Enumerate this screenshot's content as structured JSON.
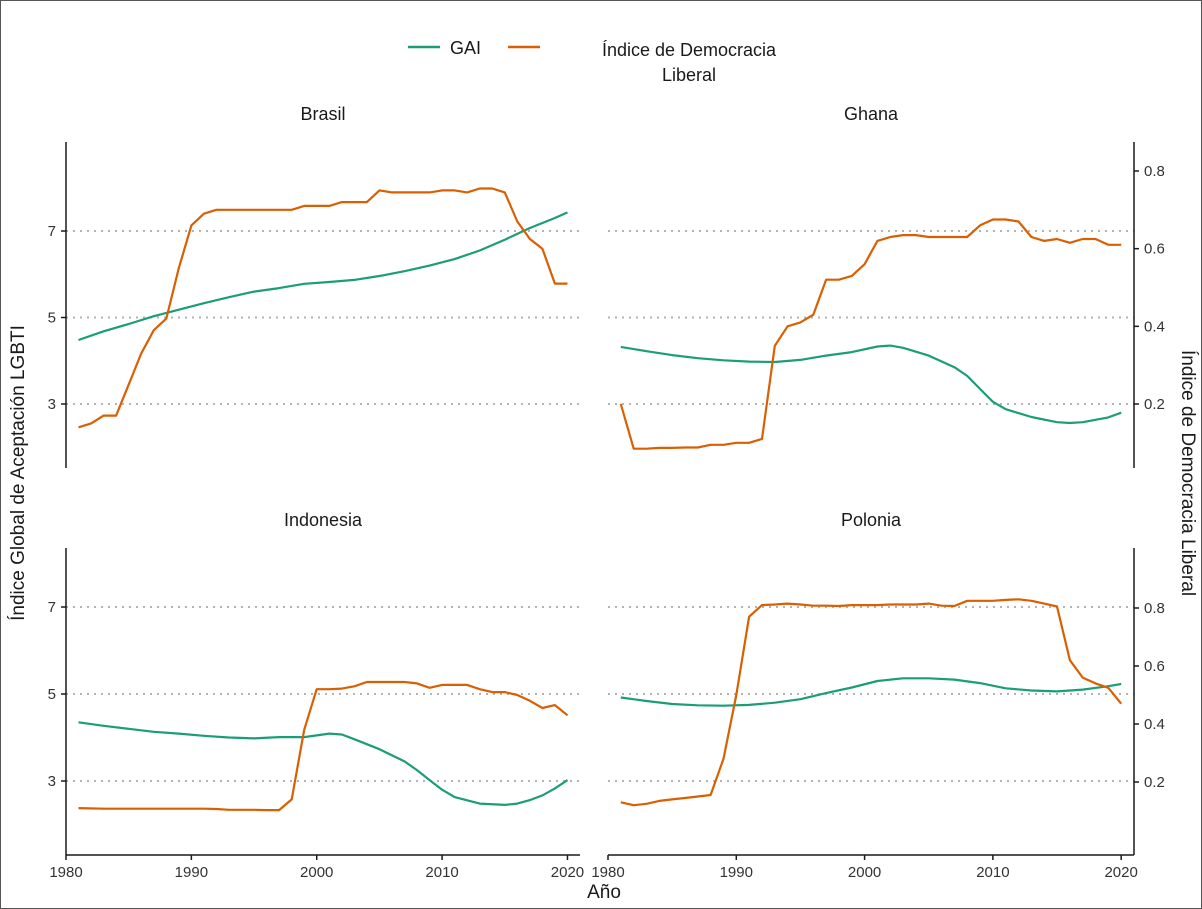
{
  "chart_data": {
    "type": "line",
    "legend": {
      "position": "top",
      "entries": [
        {
          "label": "GAI",
          "color": "#1b9e77"
        },
        {
          "label_lines": [
            "Índice de Democracia",
            "Liberal"
          ],
          "color": "#d95f02"
        }
      ]
    },
    "xlabel": "Año",
    "ylabel_left": "Índice Global de Aceptación LGBTI",
    "ylabel_right": "Índice de Democracia Liberal",
    "x_range": [
      1980,
      2021
    ],
    "x_ticks": [
      "1980",
      "1990",
      "2000",
      "2010",
      "2020"
    ],
    "y_left_ticks": [
      "3",
      "5",
      "7"
    ],
    "y_right_ticks": [
      "0.2",
      "0.4",
      "0.6",
      "0.8"
    ],
    "gridlines": "dotted horizontal at 3, 5, 7",
    "panels": [
      {
        "title": "Brasil",
        "gai": [
          [
            1981,
            4.48
          ],
          [
            1983,
            4.68
          ],
          [
            1985,
            4.85
          ],
          [
            1987,
            5.03
          ],
          [
            1989,
            5.18
          ],
          [
            1991,
            5.33
          ],
          [
            1993,
            5.47
          ],
          [
            1995,
            5.6
          ],
          [
            1997,
            5.68
          ],
          [
            1999,
            5.78
          ],
          [
            2001,
            5.82
          ],
          [
            2003,
            5.87
          ],
          [
            2005,
            5.96
          ],
          [
            2007,
            6.07
          ],
          [
            2009,
            6.2
          ],
          [
            2011,
            6.35
          ],
          [
            2013,
            6.55
          ],
          [
            2015,
            6.8
          ],
          [
            2017,
            7.07
          ],
          [
            2019,
            7.3
          ],
          [
            2020,
            7.43
          ]
        ],
        "ldi": [
          [
            1981,
            0.14
          ],
          [
            1982,
            0.15
          ],
          [
            1983,
            0.17
          ],
          [
            1984,
            0.17
          ],
          [
            1985,
            0.25
          ],
          [
            1986,
            0.33
          ],
          [
            1987,
            0.39
          ],
          [
            1988,
            0.42
          ],
          [
            1989,
            0.55
          ],
          [
            1990,
            0.66
          ],
          [
            1991,
            0.69
          ],
          [
            1992,
            0.7
          ],
          [
            1993,
            0.7
          ],
          [
            1994,
            0.7
          ],
          [
            1995,
            0.7
          ],
          [
            1996,
            0.7
          ],
          [
            1997,
            0.7
          ],
          [
            1998,
            0.7
          ],
          [
            1999,
            0.71
          ],
          [
            2000,
            0.71
          ],
          [
            2001,
            0.71
          ],
          [
            2002,
            0.72
          ],
          [
            2003,
            0.72
          ],
          [
            2004,
            0.72
          ],
          [
            2005,
            0.75
          ],
          [
            2006,
            0.745
          ],
          [
            2007,
            0.745
          ],
          [
            2008,
            0.745
          ],
          [
            2009,
            0.745
          ],
          [
            2010,
            0.75
          ],
          [
            2011,
            0.75
          ],
          [
            2012,
            0.745
          ],
          [
            2013,
            0.755
          ],
          [
            2014,
            0.755
          ],
          [
            2015,
            0.745
          ],
          [
            2016,
            0.67
          ],
          [
            2017,
            0.625
          ],
          [
            2018,
            0.6
          ],
          [
            2019,
            0.51
          ],
          [
            2020,
            0.51
          ]
        ]
      },
      {
        "title": "Ghana",
        "gai": [
          [
            1981,
            4.32
          ],
          [
            1983,
            4.22
          ],
          [
            1985,
            4.13
          ],
          [
            1987,
            4.06
          ],
          [
            1989,
            4.01
          ],
          [
            1991,
            3.98
          ],
          [
            1993,
            3.97
          ],
          [
            1995,
            4.02
          ],
          [
            1997,
            4.12
          ],
          [
            1999,
            4.2
          ],
          [
            2001,
            4.33
          ],
          [
            2002,
            4.35
          ],
          [
            2003,
            4.3
          ],
          [
            2005,
            4.12
          ],
          [
            2007,
            3.85
          ],
          [
            2008,
            3.65
          ],
          [
            2009,
            3.35
          ],
          [
            2010,
            3.05
          ],
          [
            2011,
            2.88
          ],
          [
            2013,
            2.7
          ],
          [
            2015,
            2.58
          ],
          [
            2016,
            2.56
          ],
          [
            2017,
            2.58
          ],
          [
            2019,
            2.69
          ],
          [
            2020,
            2.8
          ]
        ],
        "ldi": [
          [
            1981,
            0.2
          ],
          [
            1982,
            0.085
          ],
          [
            1983,
            0.085
          ],
          [
            1984,
            0.087
          ],
          [
            1985,
            0.087
          ],
          [
            1986,
            0.088
          ],
          [
            1987,
            0.088
          ],
          [
            1988,
            0.095
          ],
          [
            1989,
            0.095
          ],
          [
            1990,
            0.1
          ],
          [
            1991,
            0.1
          ],
          [
            1992,
            0.11
          ],
          [
            1993,
            0.35
          ],
          [
            1994,
            0.4
          ],
          [
            1995,
            0.41
          ],
          [
            1996,
            0.43
          ],
          [
            1997,
            0.52
          ],
          [
            1998,
            0.52
          ],
          [
            1999,
            0.53
          ],
          [
            2000,
            0.56
          ],
          [
            2001,
            0.62
          ],
          [
            2002,
            0.63
          ],
          [
            2003,
            0.635
          ],
          [
            2004,
            0.635
          ],
          [
            2005,
            0.63
          ],
          [
            2006,
            0.63
          ],
          [
            2007,
            0.63
          ],
          [
            2008,
            0.63
          ],
          [
            2009,
            0.66
          ],
          [
            2010,
            0.675
          ],
          [
            2011,
            0.675
          ],
          [
            2012,
            0.67
          ],
          [
            2013,
            0.63
          ],
          [
            2014,
            0.62
          ],
          [
            2015,
            0.625
          ],
          [
            2016,
            0.615
          ],
          [
            2017,
            0.625
          ],
          [
            2018,
            0.625
          ],
          [
            2019,
            0.61
          ],
          [
            2020,
            0.61
          ]
        ]
      },
      {
        "title": "Indonesia",
        "gai": [
          [
            1981,
            4.35
          ],
          [
            1983,
            4.27
          ],
          [
            1985,
            4.2
          ],
          [
            1987,
            4.13
          ],
          [
            1989,
            4.09
          ],
          [
            1991,
            4.04
          ],
          [
            1993,
            4.0
          ],
          [
            1995,
            3.98
          ],
          [
            1997,
            4.01
          ],
          [
            1999,
            4.01
          ],
          [
            2001,
            4.09
          ],
          [
            2002,
            4.07
          ],
          [
            2003,
            3.96
          ],
          [
            2005,
            3.73
          ],
          [
            2007,
            3.45
          ],
          [
            2008,
            3.25
          ],
          [
            2009,
            3.02
          ],
          [
            2010,
            2.8
          ],
          [
            2011,
            2.63
          ],
          [
            2013,
            2.48
          ],
          [
            2015,
            2.45
          ],
          [
            2016,
            2.48
          ],
          [
            2017,
            2.56
          ],
          [
            2018,
            2.67
          ],
          [
            2019,
            2.83
          ],
          [
            2020,
            3.02
          ]
        ],
        "ldi": [
          [
            1981,
            0.11
          ],
          [
            1983,
            0.108
          ],
          [
            1985,
            0.108
          ],
          [
            1987,
            0.108
          ],
          [
            1989,
            0.108
          ],
          [
            1991,
            0.108
          ],
          [
            1992,
            0.107
          ],
          [
            1993,
            0.104
          ],
          [
            1994,
            0.104
          ],
          [
            1995,
            0.104
          ],
          [
            1996,
            0.103
          ],
          [
            1997,
            0.103
          ],
          [
            1998,
            0.14
          ],
          [
            1999,
            0.38
          ],
          [
            2000,
            0.52
          ],
          [
            2001,
            0.52
          ],
          [
            2002,
            0.522
          ],
          [
            2003,
            0.53
          ],
          [
            2004,
            0.545
          ],
          [
            2005,
            0.545
          ],
          [
            2006,
            0.545
          ],
          [
            2007,
            0.545
          ],
          [
            2008,
            0.54
          ],
          [
            2009,
            0.525
          ],
          [
            2010,
            0.535
          ],
          [
            2011,
            0.535
          ],
          [
            2012,
            0.535
          ],
          [
            2013,
            0.52
          ],
          [
            2014,
            0.51
          ],
          [
            2015,
            0.51
          ],
          [
            2016,
            0.5
          ],
          [
            2017,
            0.48
          ],
          [
            2018,
            0.455
          ],
          [
            2019,
            0.465
          ],
          [
            2020,
            0.43
          ]
        ]
      },
      {
        "title": "Polonia",
        "gai": [
          [
            1981,
            4.92
          ],
          [
            1983,
            4.84
          ],
          [
            1985,
            4.77
          ],
          [
            1987,
            4.74
          ],
          [
            1989,
            4.73
          ],
          [
            1991,
            4.75
          ],
          [
            1993,
            4.8
          ],
          [
            1995,
            4.88
          ],
          [
            1997,
            5.02
          ],
          [
            1999,
            5.15
          ],
          [
            2001,
            5.3
          ],
          [
            2003,
            5.36
          ],
          [
            2005,
            5.36
          ],
          [
            2007,
            5.33
          ],
          [
            2009,
            5.25
          ],
          [
            2011,
            5.13
          ],
          [
            2013,
            5.08
          ],
          [
            2015,
            5.06
          ],
          [
            2017,
            5.1
          ],
          [
            2019,
            5.18
          ],
          [
            2020,
            5.23
          ]
        ],
        "ldi": [
          [
            1981,
            0.13
          ],
          [
            1982,
            0.12
          ],
          [
            1983,
            0.125
          ],
          [
            1984,
            0.135
          ],
          [
            1985,
            0.14
          ],
          [
            1986,
            0.145
          ],
          [
            1987,
            0.15
          ],
          [
            1988,
            0.155
          ],
          [
            1989,
            0.28
          ],
          [
            1990,
            0.5
          ],
          [
            1991,
            0.77
          ],
          [
            1992,
            0.81
          ],
          [
            1993,
            0.812
          ],
          [
            1994,
            0.815
          ],
          [
            1995,
            0.812
          ],
          [
            1996,
            0.808
          ],
          [
            1997,
            0.808
          ],
          [
            1998,
            0.807
          ],
          [
            1999,
            0.81
          ],
          [
            2000,
            0.81
          ],
          [
            2001,
            0.81
          ],
          [
            2002,
            0.812
          ],
          [
            2003,
            0.812
          ],
          [
            2004,
            0.812
          ],
          [
            2005,
            0.815
          ],
          [
            2006,
            0.808
          ],
          [
            2007,
            0.807
          ],
          [
            2008,
            0.825
          ],
          [
            2009,
            0.825
          ],
          [
            2010,
            0.825
          ],
          [
            2011,
            0.828
          ],
          [
            2012,
            0.83
          ],
          [
            2013,
            0.825
          ],
          [
            2014,
            0.815
          ],
          [
            2015,
            0.805
          ],
          [
            2016,
            0.62
          ],
          [
            2017,
            0.56
          ],
          [
            2018,
            0.54
          ],
          [
            2019,
            0.525
          ],
          [
            2020,
            0.47
          ]
        ]
      }
    ]
  }
}
